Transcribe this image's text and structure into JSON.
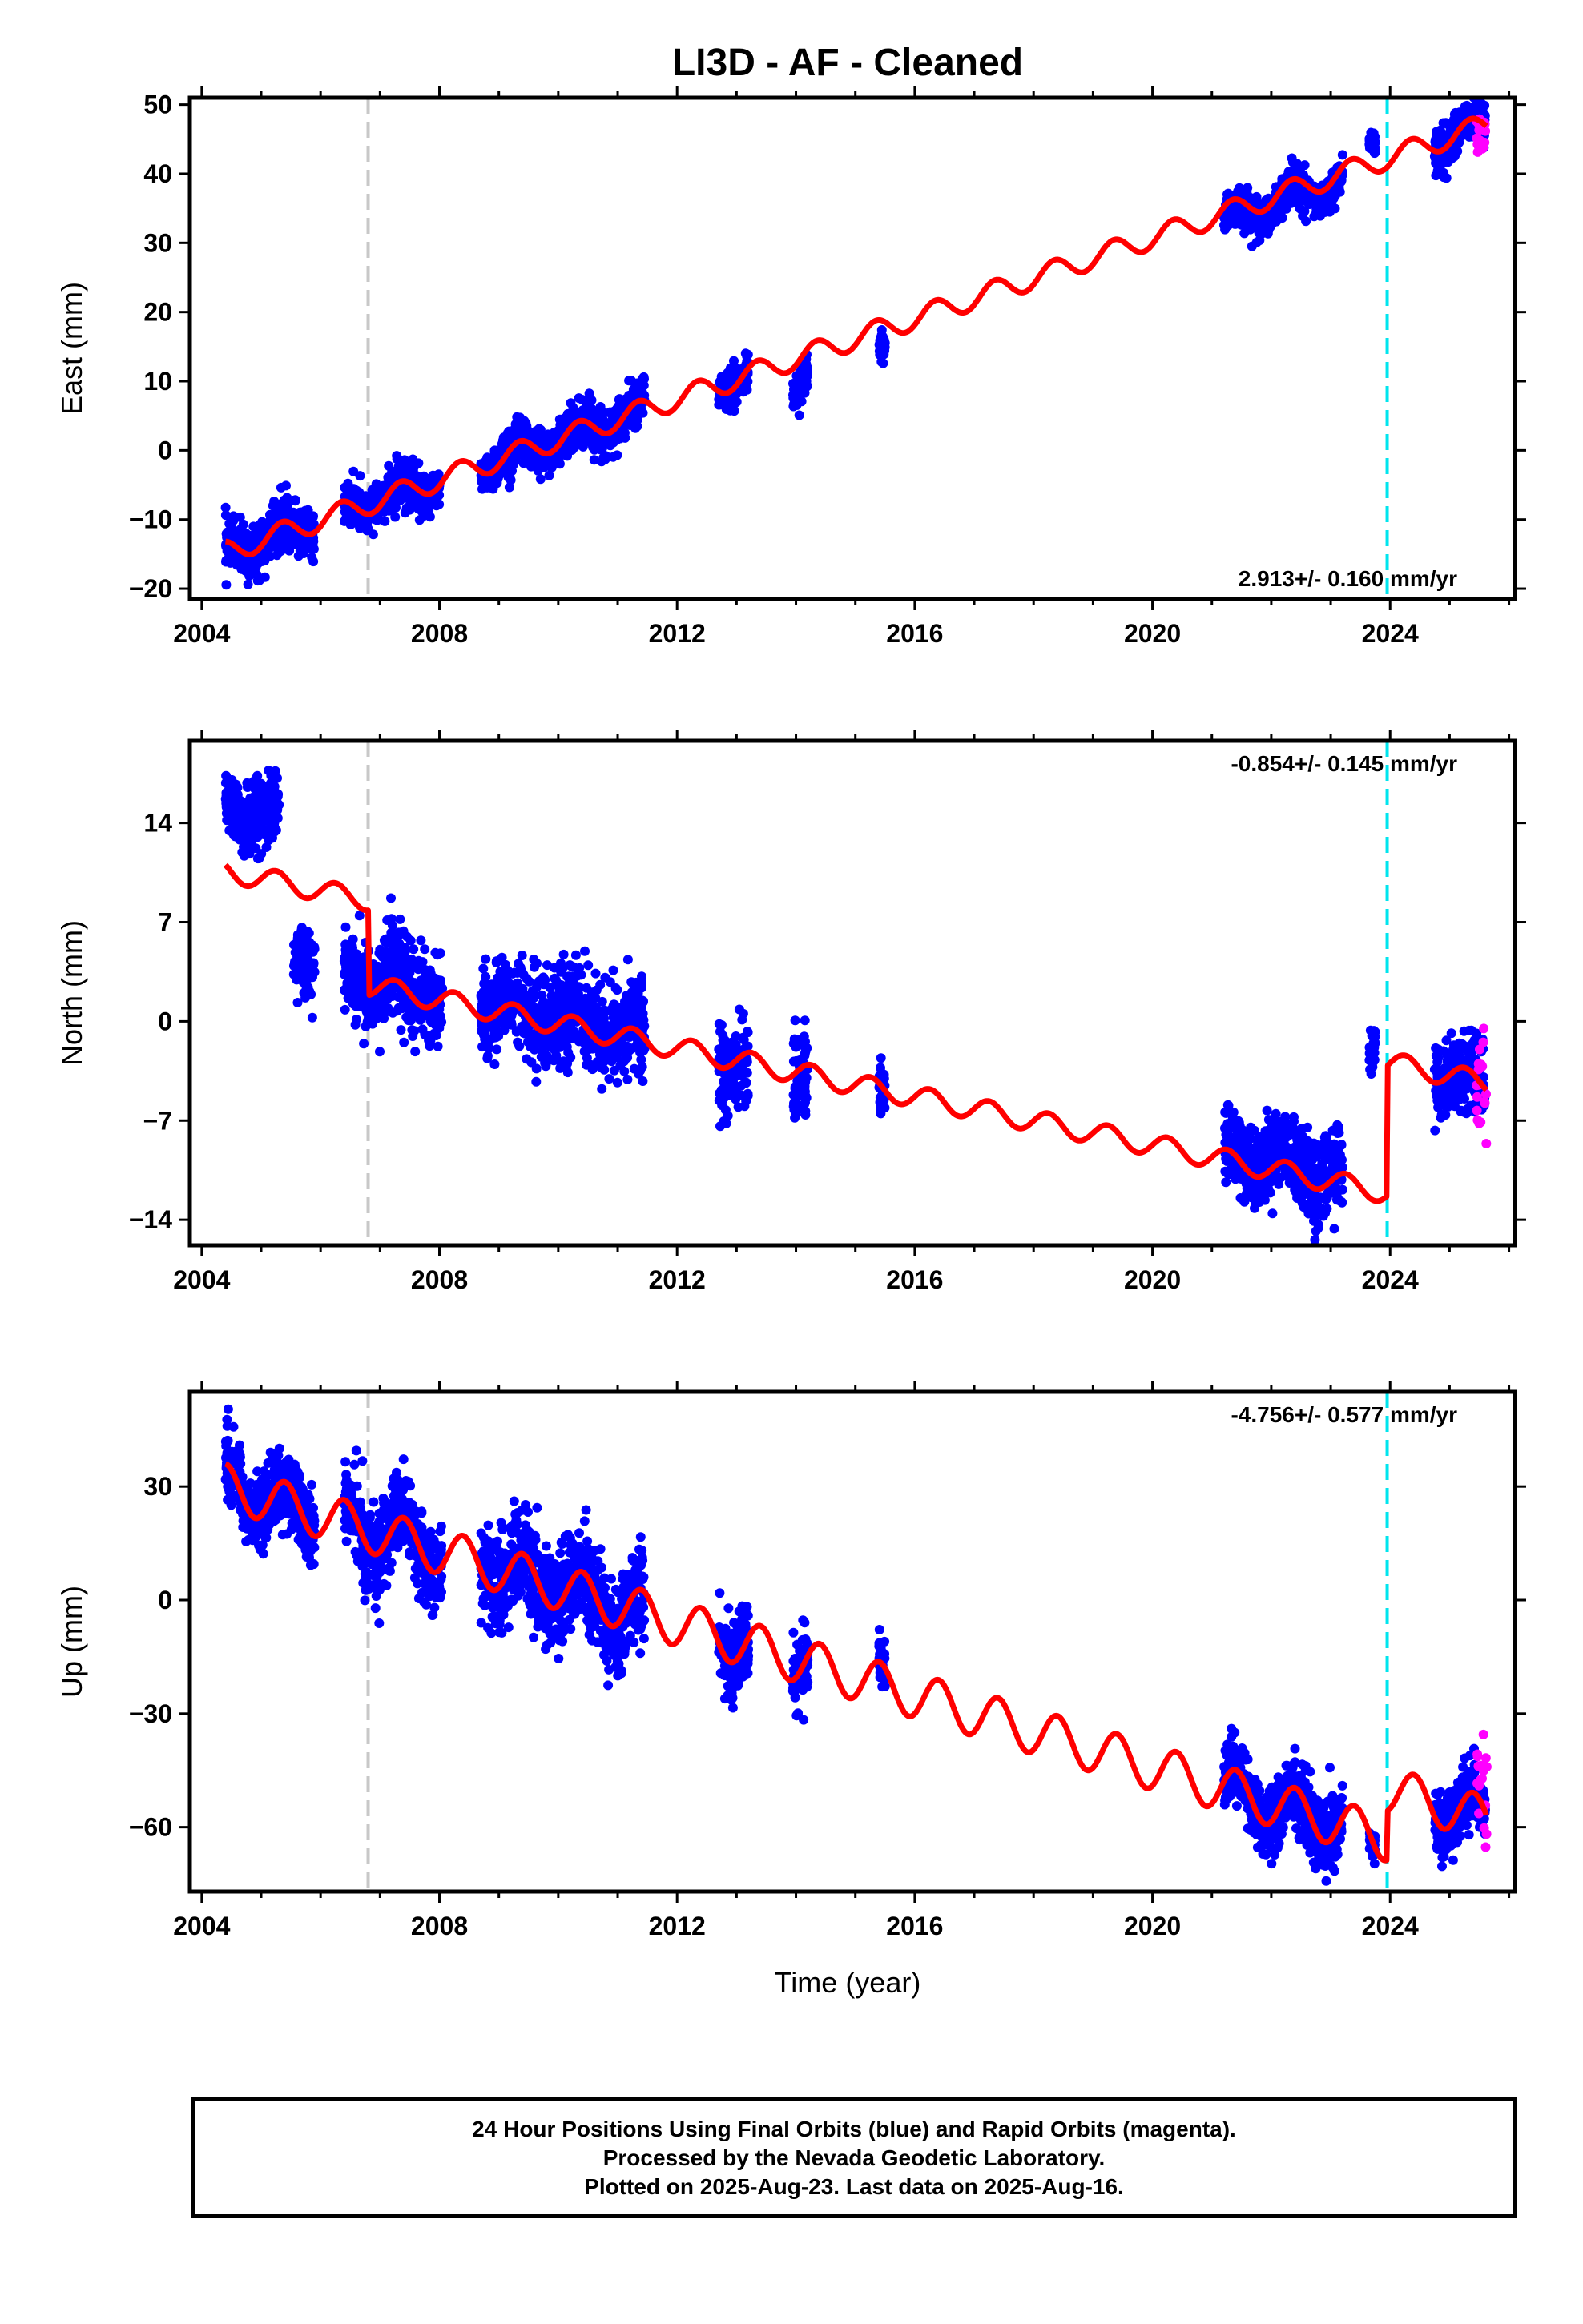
{
  "title": "LI3D  - AF - Cleaned",
  "xlabel": "Time (year)",
  "footer": {
    "line1": "24 Hour Positions Using Final Orbits (blue) and Rapid Orbits (magenta).",
    "line2": "Processed by the Nevada Geodetic Laboratory.",
    "line3": "Plotted on 2025-Aug-23. Last data on 2025-Aug-16."
  },
  "colors": {
    "final": "#0000ff",
    "rapid": "#ff00ff",
    "model": "#ff0000",
    "equipment_change": "#c8c8c8",
    "last_jump": "#00e5ee"
  },
  "chart_data": [
    {
      "type": "scatter",
      "panel": "East",
      "ylabel": "East (mm)",
      "rate_text": "2.913+/- 0.160 mm/yr",
      "xlim": [
        2003.8,
        2026.1
      ],
      "ylim": [
        -21.5,
        51
      ],
      "xticks": [
        2004,
        2008,
        2012,
        2016,
        2020,
        2024
      ],
      "yticks": [
        -20,
        -10,
        0,
        10,
        20,
        30,
        40,
        50
      ],
      "vlines": [
        {
          "x": 2006.8,
          "color": "equipment_change"
        },
        {
          "x": 2023.95,
          "color": "last_jump"
        }
      ],
      "model": {
        "slope": 2.913,
        "intercept": -14.7,
        "t0": 2004.4,
        "amp": 1.6,
        "phase": 0.1,
        "steps": []
      },
      "final_segments": [
        {
          "start": 2004.4,
          "end": 2005.5,
          "sigma": 1.8,
          "offset": 0
        },
        {
          "start": 2005.5,
          "end": 2005.9,
          "sigma": 1.6,
          "offset": 0
        },
        {
          "start": 2006.4,
          "end": 2007.85,
          "sigma": 1.6,
          "offset": 0
        },
        {
          "start": 2007.85,
          "end": 2008.0,
          "sigma": 1.3,
          "offset": 0
        },
        {
          "start": 2008.7,
          "end": 2009.3,
          "sigma": 1.3,
          "offset": 0
        },
        {
          "start": 2009.1,
          "end": 2011.45,
          "sigma": 1.6,
          "offset": 0
        },
        {
          "start": 2012.7,
          "end": 2013.2,
          "sigma": 1.6,
          "offset": 0
        },
        {
          "start": 2013.95,
          "end": 2014.2,
          "sigma": 1.3,
          "offset": -4
        },
        {
          "start": 2015.4,
          "end": 2015.5,
          "sigma": 1.0,
          "offset": -4
        },
        {
          "start": 2021.2,
          "end": 2023.2,
          "sigma": 1.3,
          "offset": -1
        },
        {
          "start": 2023.65,
          "end": 2023.75,
          "sigma": 0.8,
          "offset": 4
        },
        {
          "start": 2024.75,
          "end": 2025.6,
          "sigma": 1.6,
          "offset": 0
        }
      ],
      "rapid_segment": {
        "start": 2025.45,
        "end": 2025.63,
        "sigma": 2.0,
        "offset": -2
      }
    },
    {
      "type": "scatter",
      "panel": "North",
      "ylabel": "North (mm)",
      "rate_text": "-0.854+/- 0.145 mm/yr",
      "xlim": [
        2003.8,
        2026.1
      ],
      "ylim": [
        -15.8,
        19.8
      ],
      "xticks": [
        2004,
        2008,
        2012,
        2016,
        2020,
        2024
      ],
      "yticks": [
        -14,
        -7,
        0,
        7,
        14
      ],
      "vlines": [
        {
          "x": 2006.8,
          "color": "equipment_change"
        },
        {
          "x": 2023.95,
          "color": "last_jump"
        }
      ],
      "model": {
        "slope": -0.854,
        "intercept": 10.6,
        "t0": 2004.4,
        "amp": 0.75,
        "phase": 0.0,
        "steps": [
          {
            "t": 2006.8,
            "dy": -6.0
          },
          {
            "t": 2023.95,
            "dy": 9.2
          }
        ]
      },
      "final_segments": [
        {
          "start": 2004.4,
          "end": 2005.3,
          "sigma": 1.2,
          "offset": 4.5
        },
        {
          "start": 2005.55,
          "end": 2005.9,
          "sigma": 1.3,
          "offset": -4.5
        },
        {
          "start": 2006.4,
          "end": 2006.8,
          "sigma": 1.3,
          "offset": -5.5
        },
        {
          "start": 2006.8,
          "end": 2008.05,
          "sigma": 1.6,
          "offset": 0.5
        },
        {
          "start": 2008.7,
          "end": 2011.45,
          "sigma": 1.6,
          "offset": 0.5
        },
        {
          "start": 2012.7,
          "end": 2013.2,
          "sigma": 1.5,
          "offset": -0.3
        },
        {
          "start": 2013.95,
          "end": 2014.2,
          "sigma": 1.5,
          "offset": -0.5
        },
        {
          "start": 2015.4,
          "end": 2015.5,
          "sigma": 1.0,
          "offset": 0
        },
        {
          "start": 2021.2,
          "end": 2023.2,
          "sigma": 1.4,
          "offset": 0.5
        },
        {
          "start": 2023.65,
          "end": 2023.75,
          "sigma": 0.8,
          "offset": 10.5
        },
        {
          "start": 2024.75,
          "end": 2025.6,
          "sigma": 1.3,
          "offset": 0
        }
      ],
      "rapid_segment": {
        "start": 2025.45,
        "end": 2025.63,
        "sigma": 2.5,
        "offset": 0
      }
    },
    {
      "type": "scatter",
      "panel": "Up",
      "ylabel": "Up (mm)",
      "rate_text": "-4.756+/- 0.577 mm/yr",
      "xlim": [
        2003.8,
        2026.1
      ],
      "ylim": [
        -77,
        55
      ],
      "xticks": [
        2004,
        2008,
        2012,
        2016,
        2020,
        2024
      ],
      "yticks": [
        -60,
        -30,
        0,
        30
      ],
      "vlines": [
        {
          "x": 2006.8,
          "color": "equipment_change"
        },
        {
          "x": 2023.95,
          "color": "last_jump"
        }
      ],
      "model": {
        "slope": -4.756,
        "intercept": 30.0,
        "t0": 2004.4,
        "amp": 6.0,
        "phase": 0.15,
        "steps": [
          {
            "t": 2023.95,
            "dy": 13.0
          }
        ]
      },
      "final_segments": [
        {
          "start": 2004.4,
          "end": 2005.9,
          "sigma": 5.0,
          "offset": 0
        },
        {
          "start": 2006.4,
          "end": 2008.05,
          "sigma": 5.5,
          "offset": 0
        },
        {
          "start": 2008.7,
          "end": 2011.45,
          "sigma": 6.0,
          "offset": 0
        },
        {
          "start": 2012.7,
          "end": 2013.2,
          "sigma": 5.0,
          "offset": 0
        },
        {
          "start": 2013.95,
          "end": 2014.2,
          "sigma": 5.0,
          "offset": 0
        },
        {
          "start": 2015.4,
          "end": 2015.5,
          "sigma": 4.0,
          "offset": 0
        },
        {
          "start": 2021.2,
          "end": 2023.2,
          "sigma": 4.5,
          "offset": 0
        },
        {
          "start": 2023.65,
          "end": 2023.75,
          "sigma": 2.0,
          "offset": 0
        },
        {
          "start": 2024.75,
          "end": 2025.6,
          "sigma": 4.0,
          "offset": 0
        }
      ],
      "rapid_segment": {
        "start": 2025.45,
        "end": 2025.63,
        "sigma": 6.0,
        "offset": 5
      }
    }
  ]
}
